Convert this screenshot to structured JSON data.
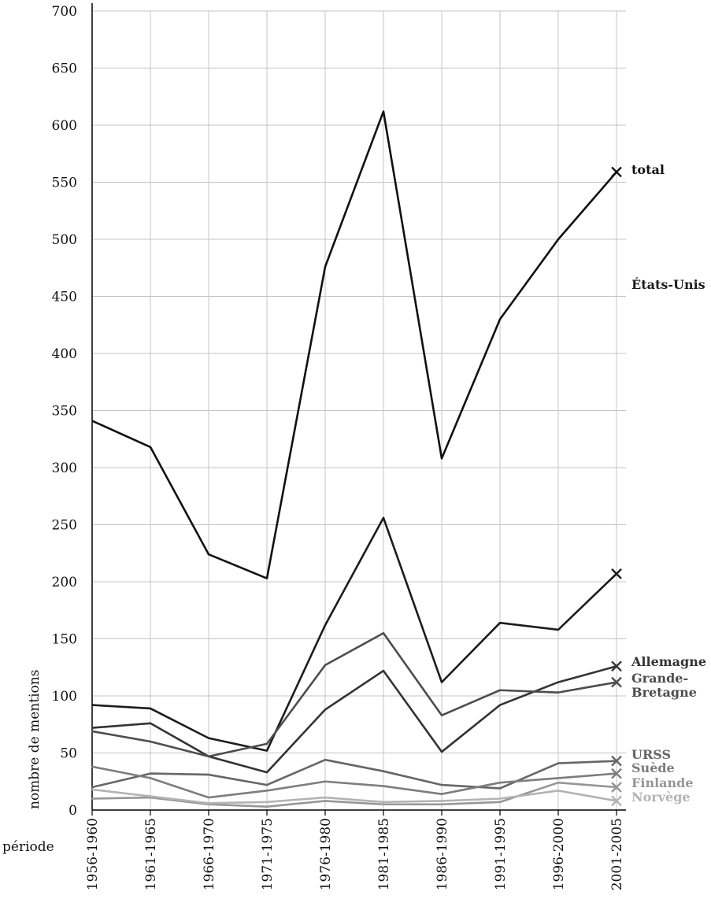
{
  "chart_data": {
    "type": "line",
    "xlabel": "période",
    "ylabel": "nombre de mentions",
    "categories": [
      "1956-1960",
      "1961-1965",
      "1966-1970",
      "1971-1975",
      "1976-1980",
      "1981-1985",
      "1986-1990",
      "1991-1995",
      "1996-2000",
      "2001-2005"
    ],
    "ylim": [
      0,
      700
    ],
    "yticks": [
      "0",
      "50",
      "100",
      "150",
      "200",
      "250",
      "300",
      "350",
      "400",
      "450",
      "500",
      "550",
      "600",
      "650",
      "700"
    ],
    "grid": true,
    "series": [
      {
        "name": "total",
        "color": "#111111",
        "values": [
          341,
          318,
          224,
          203,
          476,
          612,
          308,
          430,
          500,
          559
        ]
      },
      {
        "name": "États-Unis",
        "color": "#1c1c1c",
        "values": [
          92,
          89,
          63,
          52,
          162,
          256,
          112,
          164,
          158,
          207
        ]
      },
      {
        "name": "Allemagne",
        "color": "#333333",
        "values": [
          72,
          76,
          47,
          33,
          88,
          122,
          51,
          92,
          112,
          126
        ]
      },
      {
        "name": "Grande-\nBretagne",
        "color": "#4d4d4d",
        "values": [
          69,
          60,
          47,
          58,
          127,
          155,
          83,
          105,
          103,
          112
        ]
      },
      {
        "name": "URSS",
        "color": "#666666",
        "values": [
          20,
          32,
          31,
          22,
          44,
          34,
          22,
          19,
          41,
          43
        ]
      },
      {
        "name": "Suède",
        "color": "#7d7d7d",
        "values": [
          38,
          28,
          11,
          17,
          25,
          21,
          14,
          24,
          28,
          32
        ]
      },
      {
        "name": "Finlande",
        "color": "#969696",
        "values": [
          10,
          11,
          5,
          3,
          8,
          5,
          5,
          7,
          24,
          20
        ]
      },
      {
        "name": "Norvège",
        "color": "#b3b3b3",
        "values": [
          18,
          12,
          6,
          7,
          11,
          7,
          8,
          10,
          17,
          8
        ]
      }
    ]
  }
}
